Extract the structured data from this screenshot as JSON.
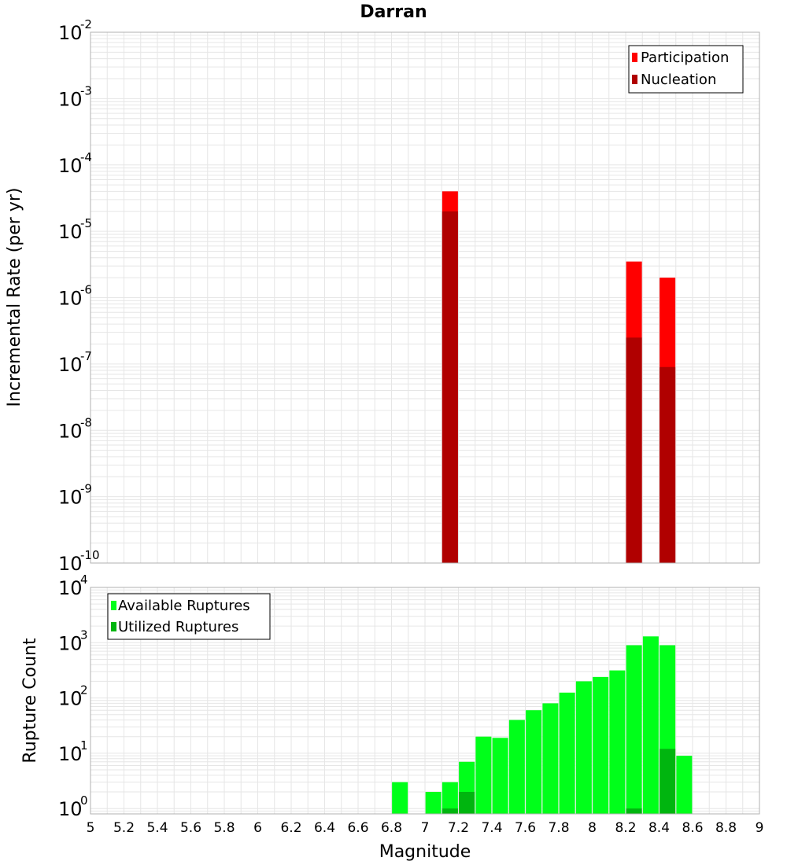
{
  "chart_data": [
    {
      "type": "bar",
      "title": "Darran",
      "xlabel": "",
      "ylabel": "Incremental Rate (per yr)",
      "y_scale": "log",
      "ylim": [
        1e-10,
        0.01
      ],
      "y_tick_exponents": [
        "-10",
        "-9",
        "-8",
        "-7",
        "-6",
        "-5",
        "-4",
        "-3",
        "-2"
      ],
      "xlim": [
        5,
        9
      ],
      "grid": true,
      "legend_position": "top-right",
      "series": [
        {
          "name": "Participation",
          "color": "#ff0000",
          "x": [
            7.15,
            8.25,
            8.45
          ],
          "values": [
            4e-05,
            3.5e-06,
            2e-06
          ]
        },
        {
          "name": "Nucleation",
          "color": "#b00000",
          "x": [
            7.15,
            8.25,
            8.45
          ],
          "values": [
            2e-05,
            2.5e-07,
            9e-08
          ]
        }
      ]
    },
    {
      "type": "bar",
      "xlabel": "Magnitude",
      "ylabel": "Rupture Count",
      "y_scale": "log",
      "ylim": [
        0.8,
        10000
      ],
      "y_tick_exponents": [
        "0",
        "1",
        "2",
        "3",
        "4"
      ],
      "xlim": [
        5,
        9
      ],
      "x_tick_labels": [
        "5",
        "5.2",
        "5.4",
        "5.6",
        "5.8",
        "6",
        "6.2",
        "6.4",
        "6.6",
        "6.8",
        "7",
        "7.2",
        "7.4",
        "7.6",
        "7.8",
        "8",
        "8.2",
        "8.4",
        "8.6",
        "8.8",
        "9"
      ],
      "grid": true,
      "legend_position": "top-left",
      "series": [
        {
          "name": "Available Ruptures",
          "color": "#00ff1a",
          "x": [
            6.85,
            7.05,
            7.15,
            7.25,
            7.35,
            7.45,
            7.55,
            7.65,
            7.75,
            7.85,
            7.95,
            8.05,
            8.15,
            8.25,
            8.35,
            8.45,
            8.55
          ],
          "values": [
            3,
            2,
            3,
            7,
            20,
            19,
            40,
            60,
            80,
            125,
            200,
            240,
            315,
            900,
            1300,
            900,
            9
          ]
        },
        {
          "name": "Utilized Ruptures",
          "color": "#00b50f",
          "x": [
            7.15,
            7.25,
            8.25,
            8.45
          ],
          "values": [
            1,
            2,
            1,
            12
          ]
        }
      ]
    }
  ]
}
